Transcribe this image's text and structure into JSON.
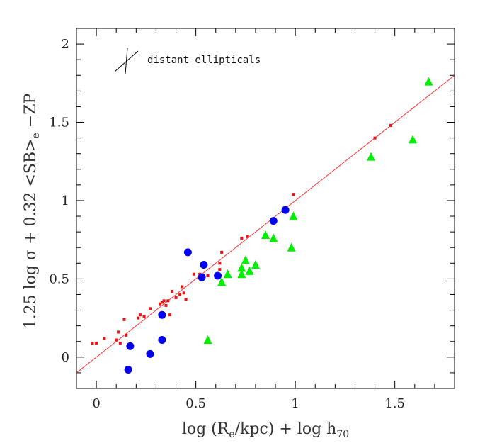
{
  "chart_data": {
    "type": "scatter",
    "title": "",
    "xlabel_main": "log (R",
    "xlabel_sub1": "e",
    "xlabel_mid": "/kpc)  +  log h",
    "xlabel_sub2": "70",
    "ylabel_main": "1.25 log σ + 0.32 <SB>",
    "ylabel_sub": "e",
    "ylabel_tail": " −ZP",
    "xlim": [
      -0.1,
      1.8
    ],
    "ylim": [
      -0.2,
      2.1
    ],
    "x_ticks": [
      0,
      0.5,
      1,
      1.5
    ],
    "x_tick_labels": [
      "0",
      "0.5",
      "1",
      "1.5"
    ],
    "y_ticks": [
      0,
      0.5,
      1,
      1.5,
      2
    ],
    "y_tick_labels": [
      "0",
      "0.5",
      "1",
      "1.5",
      "2"
    ],
    "grid": false,
    "annotation": "distant ellipticals",
    "fit_line": {
      "color": "#ff3333",
      "points": [
        [
          -0.1,
          -0.1
        ],
        [
          1.8,
          1.8
        ]
      ]
    },
    "series": [
      {
        "marker": "square",
        "color": "#ee1111",
        "points": [
          [
            -0.02,
            0.09
          ],
          [
            0.0,
            0.09
          ],
          [
            0.04,
            0.12
          ],
          [
            0.1,
            0.11
          ],
          [
            0.11,
            0.16
          ],
          [
            0.12,
            0.09
          ],
          [
            0.14,
            0.24
          ],
          [
            0.15,
            0.14
          ],
          [
            0.21,
            0.25
          ],
          [
            0.22,
            0.27
          ],
          [
            0.24,
            0.26
          ],
          [
            0.27,
            0.31
          ],
          [
            0.32,
            0.34
          ],
          [
            0.33,
            0.35
          ],
          [
            0.34,
            0.36
          ],
          [
            0.35,
            0.33
          ],
          [
            0.36,
            0.36
          ],
          [
            0.37,
            0.27
          ],
          [
            0.38,
            0.42
          ],
          [
            0.4,
            0.38
          ],
          [
            0.42,
            0.4
          ],
          [
            0.43,
            0.45
          ],
          [
            0.44,
            0.41
          ],
          [
            0.45,
            0.37
          ],
          [
            0.49,
            0.53
          ],
          [
            0.52,
            0.53
          ],
          [
            0.54,
            0.52
          ],
          [
            0.56,
            0.52
          ],
          [
            0.62,
            0.56
          ],
          [
            0.62,
            0.6
          ],
          [
            0.63,
            0.67
          ],
          [
            0.73,
            0.76
          ],
          [
            0.76,
            0.77
          ],
          [
            0.99,
            1.04
          ],
          [
            1.4,
            1.4
          ],
          [
            1.48,
            1.48
          ]
        ]
      },
      {
        "marker": "circle",
        "color": "#0000ee",
        "points": [
          [
            0.16,
            -0.08
          ],
          [
            0.17,
            0.07
          ],
          [
            0.27,
            0.02
          ],
          [
            0.33,
            0.11
          ],
          [
            0.33,
            0.27
          ],
          [
            0.46,
            0.67
          ],
          [
            0.53,
            0.51
          ],
          [
            0.54,
            0.59
          ],
          [
            0.61,
            0.52
          ],
          [
            0.89,
            0.87
          ],
          [
            0.95,
            0.94
          ]
        ]
      },
      {
        "marker": "triangle",
        "color": "#00ee00",
        "points": [
          [
            0.56,
            0.11
          ],
          [
            0.63,
            0.48
          ],
          [
            0.66,
            0.53
          ],
          [
            0.73,
            0.53
          ],
          [
            0.73,
            0.57
          ],
          [
            0.75,
            0.62
          ],
          [
            0.77,
            0.55
          ],
          [
            0.8,
            0.59
          ],
          [
            0.85,
            0.78
          ],
          [
            0.89,
            0.76
          ],
          [
            0.98,
            0.7
          ],
          [
            0.99,
            0.9
          ],
          [
            1.38,
            1.28
          ],
          [
            1.59,
            1.39
          ],
          [
            1.67,
            1.76
          ]
        ]
      }
    ]
  }
}
